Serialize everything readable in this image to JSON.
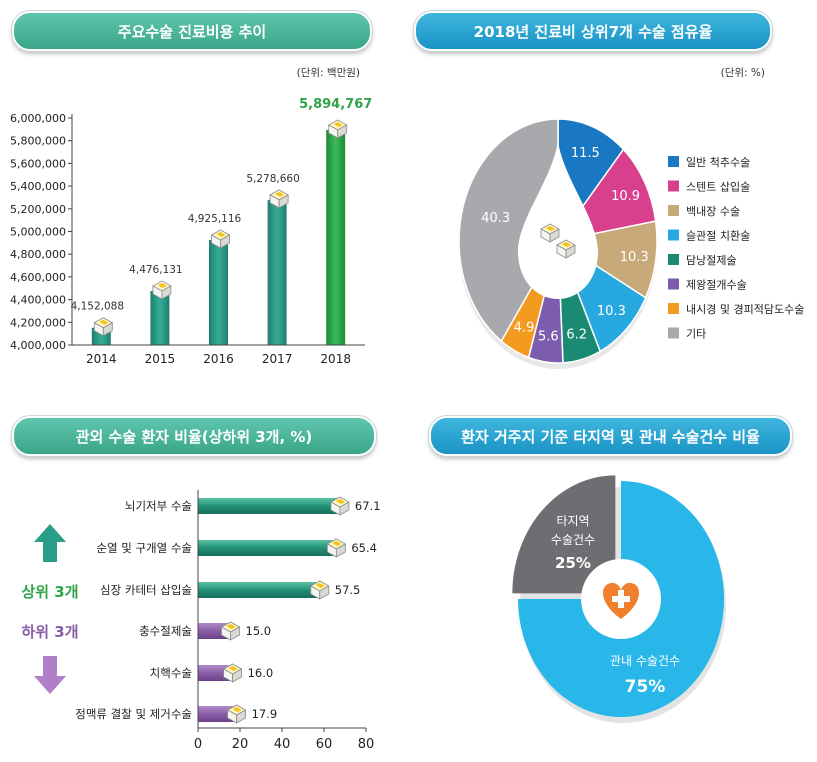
{
  "colors": {
    "green_header": "#4bb79c",
    "blue_header": "#23a0cf",
    "teal_bar": "#2a9d8a",
    "green_bar": "#2fa44a",
    "purple": "#8a5ea8",
    "highlight_green": "#2fa44a"
  },
  "chart_data": [
    {
      "type": "bar",
      "title": "주요수술 진료비용 추이",
      "unit": "(단위: 백만원)",
      "categories": [
        "2014",
        "2015",
        "2016",
        "2017",
        "2018"
      ],
      "values": [
        4152088,
        4476131,
        4925116,
        5278660,
        5894767
      ],
      "value_labels": [
        "4,152,088",
        "4,476,131",
        "4,925,116",
        "5,278,660",
        "5,894,767"
      ],
      "ylim": [
        4000000,
        6000000
      ],
      "yticks": [
        "4,000,000",
        "4,200,000",
        "4,400,000",
        "4,600,000",
        "4,800,000",
        "5,000,000",
        "5,200,000",
        "5,400,000",
        "5,600,000",
        "5,800,000",
        "6,000,000"
      ],
      "ytick_values": [
        4000000,
        4200000,
        4400000,
        4600000,
        4800000,
        5000000,
        5200000,
        5400000,
        5600000,
        5800000,
        6000000
      ]
    },
    {
      "type": "pie",
      "title": "2018년 진료비 상위7개 수술 점유율",
      "unit": "(단위: %)",
      "slices": [
        {
          "label": "일반 척추수술",
          "value": 11.5,
          "display": "11.5",
          "color": "#1a78c2"
        },
        {
          "label": "스텐트 삽입술",
          "value": 10.9,
          "display": "10.9",
          "color": "#d8408e"
        },
        {
          "label": "백내장 수술",
          "value": 10.3,
          "display": "10.3",
          "color": "#c8a979"
        },
        {
          "label": "슬관절 치환술",
          "value": 10.3,
          "display": "10.3",
          "color": "#27a9df"
        },
        {
          "label": "담낭절제술",
          "value": 6.2,
          "display": "6.2",
          "color": "#1a8a73"
        },
        {
          "label": "제왕절개수술",
          "value": 5.6,
          "display": "5.6",
          "color": "#7c5cae"
        },
        {
          "label": "내시경 및 경피적담도수술",
          "value": 4.9,
          "display": "4.9",
          "color": "#f39b1f"
        },
        {
          "label": "기타",
          "value": 40.3,
          "display": "40.3",
          "color": "#a9a9ad"
        }
      ]
    },
    {
      "type": "bar",
      "orientation": "horizontal",
      "title": "관외 수술 환자 비율(상하위 3개, %)",
      "categories": [
        "뇌기저부 수술",
        "순열 및 구개열 수술",
        "심장 카테터 삽입술",
        "충수절제술",
        "치핵수술",
        "정맥류 결찰 및 제거수술"
      ],
      "values": [
        67.1,
        65.4,
        57.5,
        15.0,
        16.0,
        17.9
      ],
      "value_labels": [
        "67.1",
        "65.4",
        "57.5",
        "15.0",
        "16.0",
        "17.9"
      ],
      "xlim": [
        0,
        80
      ],
      "xticks": [
        "0",
        "20",
        "40",
        "60",
        "80"
      ],
      "groups": {
        "top": "상위 3개",
        "bottom": "하위 3개"
      }
    },
    {
      "type": "pie",
      "title": "환자 거주지 기준 타지역 및 관내 수술건수 비율",
      "slices": [
        {
          "label": "관내 수술건수",
          "value": 75,
          "display": "75%",
          "color": "#29b6e8"
        },
        {
          "label": "타지역 수술건수",
          "value": 25,
          "display": "25%",
          "color": "#6d6e71"
        }
      ],
      "label_lines": {
        "other_1": "타지역",
        "other_2": "수술건수",
        "local": "관내 수술건수"
      }
    }
  ]
}
